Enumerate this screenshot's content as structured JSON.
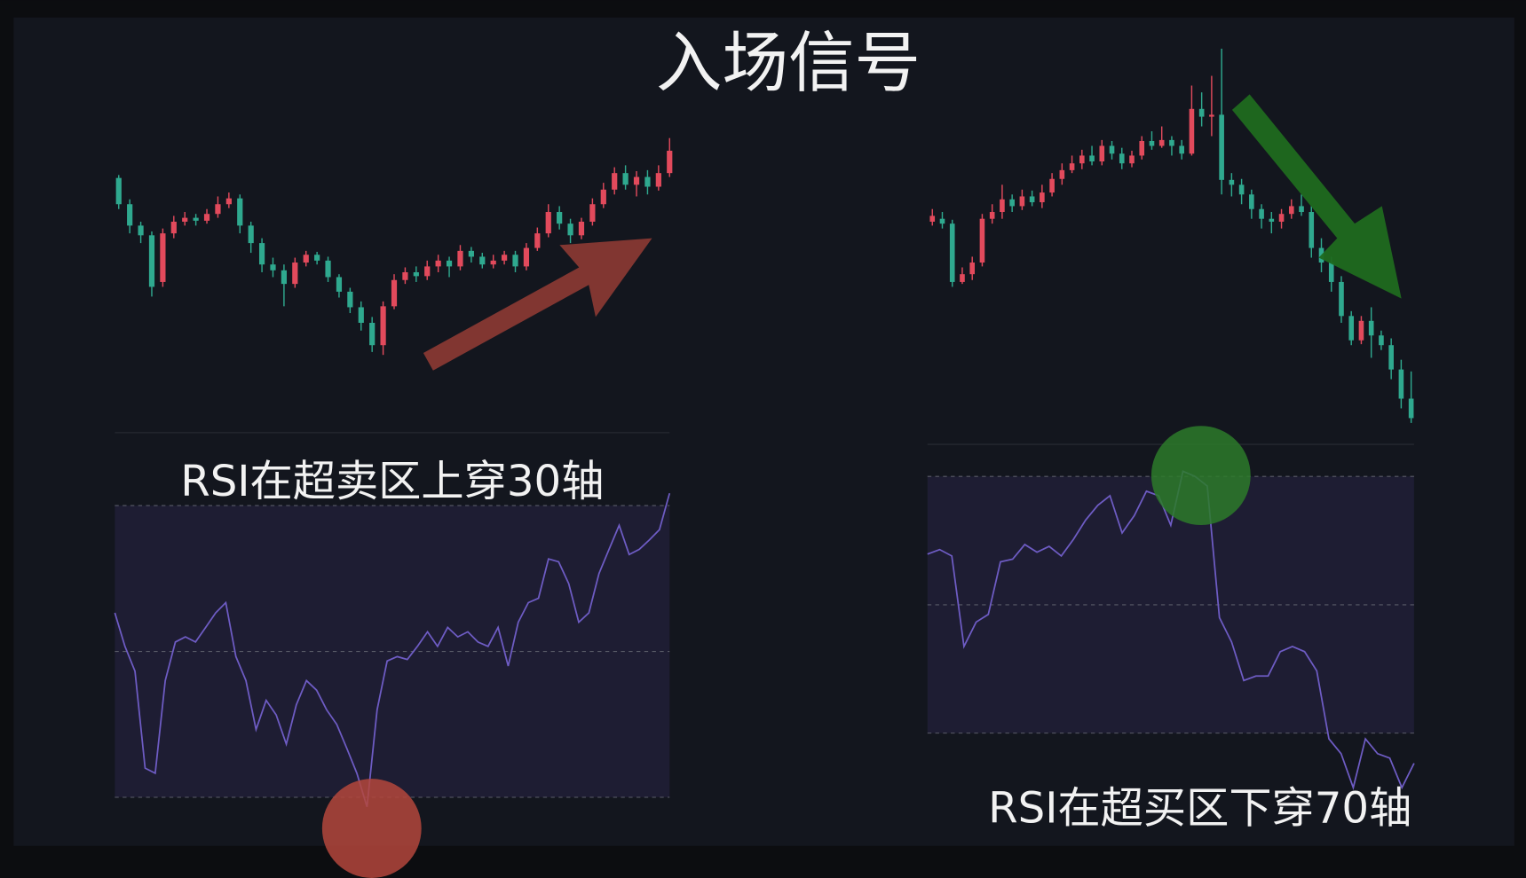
{
  "title": "入场信号",
  "chart_data": [
    {
      "type": "candlestick",
      "up_color": "#e24a5c",
      "down_color": "#2fa98f",
      "ylim": [
        0,
        280
      ],
      "candles": [
        [
          217,
          190,
          220,
          185
        ],
        [
          190,
          168,
          195,
          160
        ],
        [
          168,
          158,
          172,
          150
        ],
        [
          158,
          105,
          162,
          95
        ],
        [
          110,
          160,
          165,
          105
        ],
        [
          160,
          172,
          178,
          155
        ],
        [
          172,
          176,
          182,
          168
        ],
        [
          176,
          173,
          180,
          168
        ],
        [
          173,
          180,
          185,
          170
        ],
        [
          180,
          190,
          198,
          176
        ],
        [
          190,
          196,
          202,
          186
        ],
        [
          196,
          168,
          200,
          160
        ],
        [
          168,
          150,
          172,
          140
        ],
        [
          150,
          128,
          155,
          120
        ],
        [
          128,
          122,
          135,
          115
        ],
        [
          122,
          108,
          128,
          85
        ],
        [
          108,
          130,
          135,
          104
        ],
        [
          130,
          138,
          142,
          126
        ],
        [
          138,
          132,
          141,
          128
        ],
        [
          132,
          115,
          136,
          110
        ],
        [
          115,
          100,
          118,
          94
        ],
        [
          100,
          84,
          104,
          78
        ],
        [
          84,
          68,
          90,
          60
        ],
        [
          68,
          45,
          74,
          38
        ],
        [
          45,
          85,
          90,
          35
        ],
        [
          85,
          112,
          118,
          82
        ],
        [
          112,
          120,
          125,
          108
        ],
        [
          120,
          116,
          126,
          110
        ],
        [
          116,
          126,
          132,
          112
        ],
        [
          126,
          132,
          138,
          120
        ],
        [
          132,
          126,
          136,
          115
        ],
        [
          126,
          142,
          148,
          122
        ],
        [
          142,
          136,
          146,
          130
        ],
        [
          136,
          128,
          140,
          124
        ],
        [
          128,
          132,
          138,
          124
        ],
        [
          132,
          138,
          142,
          128
        ],
        [
          138,
          126,
          142,
          120
        ],
        [
          126,
          145,
          150,
          122
        ],
        [
          145,
          160,
          166,
          142
        ],
        [
          160,
          182,
          190,
          156
        ],
        [
          182,
          170,
          188,
          164
        ],
        [
          170,
          158,
          175,
          150
        ],
        [
          158,
          172,
          176,
          154
        ],
        [
          172,
          190,
          196,
          168
        ],
        [
          190,
          205,
          212,
          186
        ],
        [
          205,
          222,
          228,
          200
        ],
        [
          222,
          210,
          230,
          205
        ],
        [
          210,
          218,
          224,
          198
        ],
        [
          218,
          208,
          225,
          200
        ],
        [
          208,
          222,
          230,
          204
        ],
        [
          222,
          245,
          258,
          218
        ]
      ]
    },
    {
      "type": "line",
      "annotation": "RSI在超卖区上穿30轴",
      "color": "#6e5cc4",
      "band_color": "#1e1d33",
      "ylim": [
        26,
        80
      ],
      "ref_lines": [
        30,
        50,
        70
      ],
      "values": [
        55.3,
        50.7,
        47.3,
        34,
        33.3,
        46,
        51.3,
        52,
        51.3,
        53.3,
        55.3,
        56.7,
        49.3,
        46,
        39.3,
        43.3,
        41.3,
        37.3,
        42.7,
        46,
        44.7,
        42,
        40,
        36.7,
        33.3,
        28.7,
        42,
        48.7,
        49.3,
        48.9,
        50.7,
        52.7,
        50.7,
        53.3,
        52,
        52.7,
        51.3,
        50.7,
        53.3,
        48,
        54,
        56.7,
        57.3,
        62.7,
        62.3,
        59.3,
        54,
        55.3,
        60.7,
        64,
        67.3,
        63.3,
        64,
        65.3,
        66.7,
        71.7
      ]
    },
    {
      "type": "candlestick",
      "up_color": "#e24a5c",
      "down_color": "#2fa98f",
      "ylim": [
        0,
        400
      ],
      "candles": [
        [
          212,
          218,
          225,
          208
        ],
        [
          215,
          210,
          222,
          205
        ],
        [
          210,
          150,
          214,
          145
        ],
        [
          150,
          158,
          165,
          148
        ],
        [
          158,
          170,
          176,
          152
        ],
        [
          170,
          215,
          220,
          166
        ],
        [
          215,
          222,
          230,
          210
        ],
        [
          222,
          235,
          250,
          215
        ],
        [
          235,
          228,
          240,
          222
        ],
        [
          228,
          238,
          245,
          224
        ],
        [
          238,
          232,
          244,
          228
        ],
        [
          232,
          242,
          250,
          226
        ],
        [
          242,
          256,
          262,
          238
        ],
        [
          256,
          265,
          272,
          250
        ],
        [
          265,
          272,
          280,
          262
        ],
        [
          272,
          280,
          286,
          266
        ],
        [
          280,
          274,
          290,
          270
        ],
        [
          274,
          290,
          296,
          270
        ],
        [
          290,
          282,
          295,
          276
        ],
        [
          282,
          272,
          288,
          266
        ],
        [
          272,
          280,
          285,
          268
        ],
        [
          280,
          295,
          300,
          276
        ],
        [
          295,
          290,
          305,
          286
        ],
        [
          290,
          296,
          310,
          288
        ],
        [
          296,
          290,
          300,
          280
        ],
        [
          290,
          282,
          296,
          276
        ],
        [
          282,
          328,
          352,
          280
        ],
        [
          328,
          320,
          345,
          310
        ],
        [
          320,
          322,
          362,
          300
        ],
        [
          322,
          255,
          390,
          240
        ],
        [
          255,
          250,
          262,
          238
        ],
        [
          250,
          240,
          256,
          230
        ],
        [
          240,
          225,
          245,
          215
        ],
        [
          225,
          215,
          230,
          205
        ],
        [
          215,
          212,
          222,
          200
        ],
        [
          212,
          220,
          225,
          205
        ],
        [
          220,
          228,
          235,
          215
        ],
        [
          228,
          222,
          240,
          218
        ],
        [
          222,
          185,
          228,
          175
        ],
        [
          185,
          170,
          195,
          160
        ],
        [
          170,
          150,
          176,
          140
        ],
        [
          150,
          115,
          156,
          108
        ],
        [
          115,
          90,
          120,
          85
        ],
        [
          90,
          110,
          115,
          86
        ],
        [
          110,
          95,
          124,
          72
        ],
        [
          95,
          85,
          100,
          80
        ],
        [
          85,
          60,
          92,
          50
        ],
        [
          60,
          30,
          70,
          20
        ],
        [
          30,
          10,
          58,
          5
        ]
      ]
    },
    {
      "type": "line",
      "annotation": "RSI在超买区下穿70轴",
      "color": "#6e5cc4",
      "band_color": "#1e1d33",
      "ylim": [
        20,
        75
      ],
      "ref_lines": [
        30,
        50,
        70
      ],
      "values": [
        57.9,
        58.6,
        57.6,
        43.5,
        47.3,
        48.5,
        56.7,
        57.1,
        59.4,
        58.2,
        59.1,
        57.6,
        60.2,
        63.2,
        65.5,
        67,
        61.2,
        63.9,
        67.7,
        67,
        62.4,
        70.8,
        70,
        68.5,
        48,
        44.2,
        38.2,
        38.9,
        38.9,
        42.7,
        43.5,
        42.7,
        39.7,
        29.1,
        26.8,
        21.5,
        29.1,
        26.8,
        26.1,
        21.5,
        25.3
      ]
    }
  ]
}
